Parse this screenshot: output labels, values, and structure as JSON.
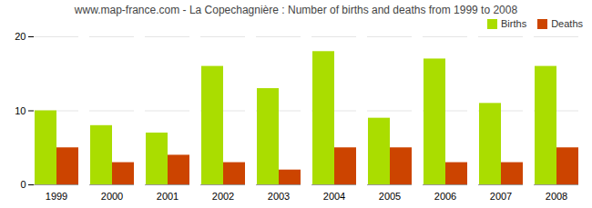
{
  "chart_data": {
    "type": "bar",
    "title": "www.map-france.com - La Copechagnière : Number of births and deaths from 1999 to 2008",
    "categories": [
      "1999",
      "2000",
      "2001",
      "2002",
      "2003",
      "2004",
      "2005",
      "2006",
      "2007",
      "2008"
    ],
    "series": [
      {
        "name": "Births",
        "color": "#aadd00",
        "values": [
          10,
          8,
          7,
          16,
          13,
          18,
          9,
          17,
          11,
          16
        ]
      },
      {
        "name": "Deaths",
        "color": "#cc4400",
        "values": [
          5,
          3,
          4,
          3,
          2,
          5,
          5,
          3,
          3,
          5
        ]
      }
    ],
    "ylim": [
      0,
      20
    ],
    "yticks": [
      0,
      10,
      20
    ],
    "grid": true,
    "legend": "upper right"
  }
}
